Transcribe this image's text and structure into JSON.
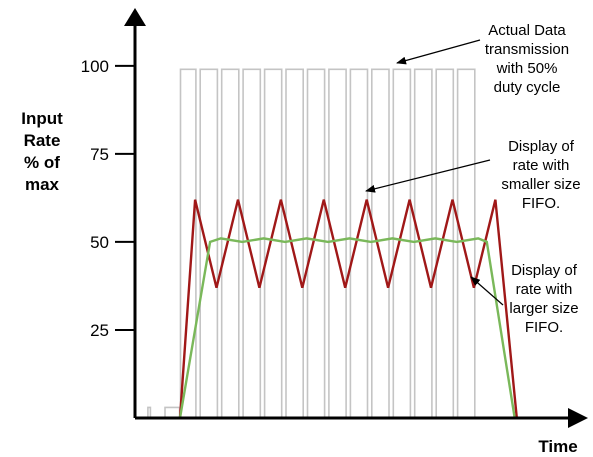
{
  "chart_data": {
    "type": "line",
    "title": "",
    "xlabel": "Time",
    "ylabel_lines": [
      "Input",
      "Rate",
      "% of",
      "max"
    ],
    "y_ticks": [
      25,
      50,
      75,
      100
    ],
    "ylim": [
      0,
      115
    ],
    "xlim": [
      0,
      100
    ],
    "grid": false,
    "series": [
      {
        "name": "",
        "color": "#c4c4c4",
        "style": "square-wave",
        "x": [
          0,
          3,
          3,
          3.6,
          3.6,
          7,
          7,
          10.4,
          10.4,
          10.6,
          10.6,
          14.2,
          14.2,
          15.2,
          15.2,
          19.2,
          19.2,
          20.2,
          20.2,
          24.2,
          24.2,
          25.2,
          25.2,
          29.2,
          29.2,
          30.2,
          30.2,
          34.2,
          34.2,
          35.2,
          35.2,
          39.2,
          39.2,
          40.2,
          40.2,
          44.2,
          44.2,
          45.2,
          45.2,
          49.2,
          49.2,
          50.2,
          50.2,
          54.2,
          54.2,
          55.2,
          55.2,
          59.2,
          59.2,
          60.2,
          60.2,
          64.2,
          64.2,
          65.2,
          65.2,
          69.2,
          69.2,
          70.2,
          70.2,
          74.2,
          74.2,
          75.2,
          75.2,
          79.2,
          79.2,
          80.2,
          80.2,
          96
        ],
        "y": [
          0,
          0,
          3,
          3,
          0,
          0,
          3,
          3,
          0,
          0,
          99,
          99,
          0,
          0,
          99,
          99,
          0,
          0,
          99,
          99,
          0,
          0,
          99,
          99,
          0,
          0,
          99,
          99,
          0,
          0,
          99,
          99,
          0,
          0,
          99,
          99,
          0,
          0,
          99,
          99,
          0,
          0,
          99,
          99,
          0,
          0,
          99,
          99,
          0,
          0,
          99,
          99,
          0,
          0,
          99,
          99,
          0,
          0,
          99,
          99,
          0,
          0,
          99,
          99,
          0,
          0,
          0,
          0
        ]
      },
      {
        "name": "",
        "color": "#a01818",
        "x": [
          10.5,
          14,
          19,
          24,
          29,
          34,
          39,
          44,
          49,
          54,
          59,
          64,
          69,
          74,
          79,
          84,
          89
        ],
        "y": [
          0,
          62,
          37,
          62,
          37,
          62,
          37,
          62,
          37,
          62,
          37,
          62,
          37,
          62,
          37,
          62,
          0
        ]
      },
      {
        "name": "",
        "color": "#7ab85a",
        "x": [
          10.5,
          17.5,
          20,
          25,
          30,
          35,
          40,
          45,
          50,
          55,
          60,
          65,
          70,
          75,
          80,
          82,
          88.5
        ],
        "y": [
          0,
          50,
          51,
          50,
          51,
          50,
          51,
          50,
          51,
          50,
          51,
          50,
          51,
          50,
          51,
          50,
          0
        ]
      }
    ],
    "annotations": [
      {
        "lines": [
          "Actual Data",
          "transmission",
          "with 50%",
          "duty cycle"
        ]
      },
      {
        "lines": [
          "Display of",
          "rate with",
          "smaller size",
          "FIFO."
        ]
      },
      {
        "lines": [
          "Display of",
          "rate with",
          "larger size",
          "FIFO."
        ]
      }
    ]
  }
}
